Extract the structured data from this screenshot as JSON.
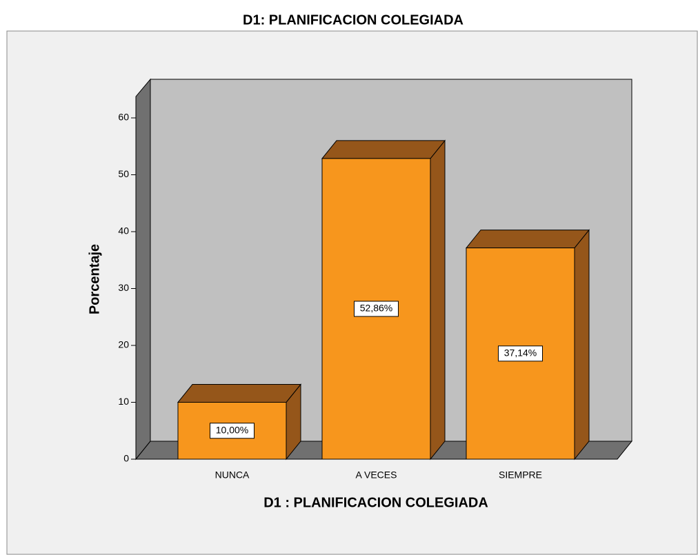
{
  "chart_data": {
    "type": "bar3d",
    "title": "D1: PLANIFICACION COLEGIADA",
    "x_label": "D1 : PLANIFICACION COLEGIADA",
    "y_label": "Porcentaje",
    "categories": [
      "NUNCA",
      "A VECES",
      "SIEMPRE"
    ],
    "values": [
      10.0,
      52.86,
      37.14
    ],
    "value_labels": [
      "10,00%",
      "52,86%",
      "37,14%"
    ],
    "color": "#f7961d",
    "ylim": [
      0,
      60
    ],
    "yticks": [
      0,
      10,
      20,
      30,
      40,
      50,
      60
    ]
  }
}
